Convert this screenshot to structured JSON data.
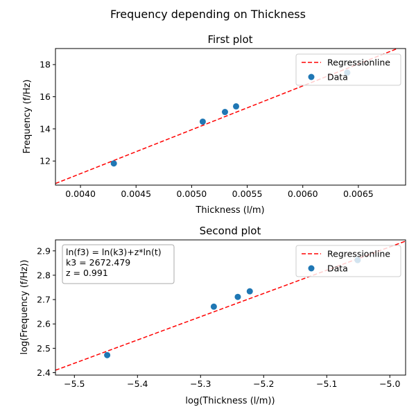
{
  "figure_title": "Frequency depending on Thickness",
  "chart_data": [
    {
      "type": "scatter",
      "title": "First plot",
      "xlabel": "Thickness (l/m)",
      "ylabel": "Frequency (f/Hz)",
      "xlim": [
        0.003775,
        0.006925
      ],
      "ylim": [
        10.5,
        19.0
      ],
      "xticks": [
        0.004,
        0.0045,
        0.005,
        0.0055,
        0.006,
        0.0065
      ],
      "xtick_labels": [
        "0.0040",
        "0.0045",
        "0.0050",
        "0.0055",
        "0.0060",
        "0.0065"
      ],
      "yticks": [
        12,
        14,
        16,
        18
      ],
      "ytick_labels": [
        "12",
        "14",
        "16",
        "18"
      ],
      "grid": false,
      "legend_position": "top-right",
      "series": [
        {
          "name": "Regressionline",
          "kind": "line",
          "color": "#ff0000",
          "dash": "dashed",
          "x": [
            0.003775,
            0.006925
          ],
          "y": [
            10.6,
            19.2
          ]
        },
        {
          "name": "Data",
          "kind": "scatter",
          "color": "#1f77b4",
          "x": [
            0.0043,
            0.0051,
            0.0053,
            0.0054,
            0.0064
          ],
          "y": [
            11.85,
            14.45,
            15.05,
            15.4,
            17.5
          ]
        }
      ]
    },
    {
      "type": "scatter",
      "title": "Second plot",
      "xlabel": "log(Thickness (l/m))",
      "ylabel": "log(Frequency (f/Hz))",
      "xlim": [
        -5.53,
        -4.975
      ],
      "ylim": [
        2.39,
        2.945
      ],
      "xticks": [
        -5.5,
        -5.4,
        -5.3,
        -5.2,
        -5.1,
        -5.0
      ],
      "xtick_labels": [
        "−5.5",
        "−5.4",
        "−5.3",
        "−5.2",
        "−5.1",
        "−5.0"
      ],
      "yticks": [
        2.4,
        2.5,
        2.6,
        2.7,
        2.8,
        2.9
      ],
      "ytick_labels": [
        "2.4",
        "2.5",
        "2.6",
        "2.7",
        "2.8",
        "2.9"
      ],
      "grid": false,
      "legend_position": "top-right",
      "annotation": {
        "lines": [
          "ln(f3) = ln(k3)+z*ln(t)",
          "k3 = 2672.479",
          "z = 0.991"
        ],
        "position": "top-left"
      },
      "series": [
        {
          "name": "Regressionline",
          "kind": "line",
          "color": "#ff0000",
          "dash": "dashed",
          "x": [
            -5.53,
            -4.975
          ],
          "y": [
            2.41,
            2.94
          ]
        },
        {
          "name": "Data",
          "kind": "scatter",
          "color": "#1f77b4",
          "x": [
            -5.448,
            -5.279,
            -5.241,
            -5.222,
            -5.051
          ],
          "y": [
            2.472,
            2.671,
            2.711,
            2.734,
            2.862
          ]
        }
      ]
    }
  ]
}
